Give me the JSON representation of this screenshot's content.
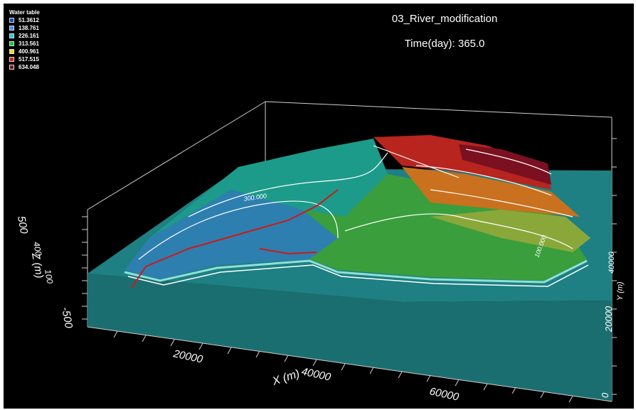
{
  "scene": {
    "model_name": "03_River_modification",
    "time_label": "Time(day): 365.0"
  },
  "legend": {
    "title": "Water table",
    "items": [
      {
        "value": "51.3612",
        "color": "#2a3fb8"
      },
      {
        "value": "138.761",
        "color": "#5a7fe0"
      },
      {
        "value": "226.161",
        "color": "#22c9e0"
      },
      {
        "value": "313.561",
        "color": "#22c23c"
      },
      {
        "value": "400.961",
        "color": "#e8e41a"
      },
      {
        "value": "517.515",
        "color": "#e01818"
      },
      {
        "value": "634.048",
        "color": "#7a1020"
      }
    ]
  },
  "axes": {
    "x_label": "X (m)",
    "x_ticks": [
      "20000",
      "40000",
      "60000"
    ],
    "y_label": "Y (m)",
    "y_ticks": [
      "0",
      "20000",
      "40000"
    ],
    "z_label": "Z (m)",
    "z_ticks": [
      "500",
      "400",
      "100",
      "-500"
    ]
  },
  "contours": [
    "300.000",
    "100.000"
  ],
  "surface_colors": {
    "base": "#1d7b7c",
    "blue_zone": "#2d7fb0",
    "teal_zone": "#1c9b8a",
    "green_zone": "#3a9e3c",
    "yellow_green_zone": "#8aa83a",
    "orange_zone": "#c9711e",
    "red_zone": "#b8241e",
    "dark_red_zone": "#7a1020",
    "river": "#d01818"
  }
}
